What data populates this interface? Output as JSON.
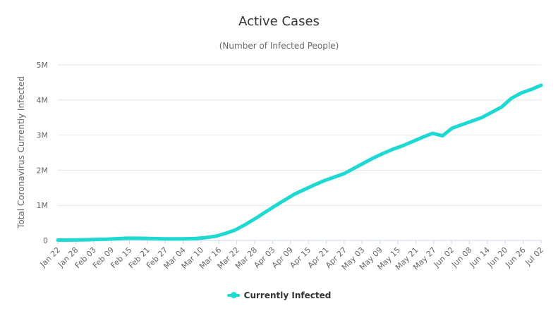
{
  "chart_data": {
    "type": "line",
    "title": "Active Cases",
    "subtitle": "(Number of Infected People)",
    "ylabel": "Total Coronavirus Currently Infected",
    "xlabel": "",
    "ylim": [
      0,
      5000000
    ],
    "y_ticks": [
      0,
      1000000,
      2000000,
      3000000,
      4000000,
      5000000
    ],
    "y_tick_labels": [
      "0",
      "1M",
      "2M",
      "3M",
      "4M",
      "5M"
    ],
    "x_tick_labels": [
      "Jan 22",
      "Jan 28",
      "Feb 03",
      "Feb 09",
      "Feb 15",
      "Feb 21",
      "Feb 27",
      "Mar 04",
      "Mar 10",
      "Mar 16",
      "Mar 22",
      "Mar 28",
      "Apr 03",
      "Apr 09",
      "Apr 15",
      "Apr 21",
      "Apr 27",
      "May 03",
      "May 09",
      "May 15",
      "May 21",
      "May 27",
      "Jun 02",
      "Jun 08",
      "Jun 14",
      "Jun 20",
      "Jun 26",
      "Jul 02"
    ],
    "grid": true,
    "legend_position": "bottom-center",
    "series": [
      {
        "name": "Currently Infected",
        "color": "#1ed8d2",
        "values": [
          10000,
          12000,
          15000,
          20000,
          30000,
          35000,
          50000,
          62000,
          62000,
          58000,
          50000,
          46000,
          44000,
          48000,
          55000,
          80000,
          120000,
          200000,
          300000,
          450000,
          620000,
          800000,
          980000,
          1150000,
          1320000,
          1450000,
          1580000,
          1700000,
          1800000,
          1900000,
          2050000,
          2200000,
          2350000,
          2480000,
          2600000,
          2700000,
          2820000,
          2940000,
          3050000,
          2980000,
          3200000,
          3300000,
          3400000,
          3500000,
          3650000,
          3800000,
          4050000,
          4200000,
          4300000,
          4420000
        ]
      }
    ]
  }
}
